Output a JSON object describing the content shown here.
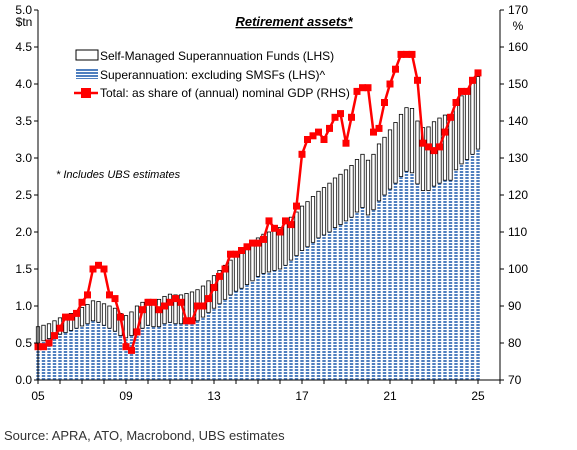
{
  "chart_data": {
    "type": "bar+line",
    "title": "Retirement assets*",
    "left_axis_unit": "$tn",
    "right_axis_unit": "%",
    "left_ylim": [
      0,
      5
    ],
    "left_ticks": [
      "0.0",
      "0.5",
      "1.0",
      "1.5",
      "2.0",
      "2.5",
      "3.0",
      "3.5",
      "4.0",
      "4.5",
      "5.0"
    ],
    "right_ylim": [
      70,
      170
    ],
    "right_ticks": [
      "70",
      "80",
      "90",
      "100",
      "110",
      "120",
      "130",
      "140",
      "150",
      "160",
      "170"
    ],
    "x_range": [
      2005,
      2026
    ],
    "x_ticks": [
      "05",
      "09",
      "13",
      "17",
      "21",
      "25"
    ],
    "note": "* Includes UBS estimates",
    "legend": {
      "smsf": "Self-Managed Superannuation Funds (LHS)",
      "super_ex": "Superannuation: excluding SMSFs (LHS)^",
      "total": "Total: as share of (annual) nominal GDP (RHS)"
    },
    "series": [
      {
        "name": "Superannuation: excluding SMSFs (LHS)^",
        "x": [
          2005.0,
          2005.25,
          2005.5,
          2005.75,
          2006.0,
          2006.25,
          2006.5,
          2006.75,
          2007.0,
          2007.25,
          2007.5,
          2007.75,
          2008.0,
          2008.25,
          2008.5,
          2008.75,
          2009.0,
          2009.25,
          2009.5,
          2009.75,
          2010.0,
          2010.25,
          2010.5,
          2010.75,
          2011.0,
          2011.25,
          2011.5,
          2011.75,
          2012.0,
          2012.25,
          2012.5,
          2012.75,
          2013.0,
          2013.25,
          2013.5,
          2013.75,
          2014.0,
          2014.25,
          2014.5,
          2014.75,
          2015.0,
          2015.25,
          2015.5,
          2015.75,
          2016.0,
          2016.25,
          2016.5,
          2016.75,
          2017.0,
          2017.25,
          2017.5,
          2017.75,
          2018.0,
          2018.25,
          2018.5,
          2018.75,
          2019.0,
          2019.25,
          2019.5,
          2019.75,
          2020.0,
          2020.25,
          2020.5,
          2020.75,
          2021.0,
          2021.25,
          2021.5,
          2021.75,
          2022.0,
          2022.25,
          2022.5,
          2022.75,
          2023.0,
          2023.25,
          2023.5,
          2023.75,
          2024.0,
          2024.25,
          2024.5,
          2024.75,
          2025.0
        ],
        "values": [
          0.5,
          0.53,
          0.56,
          0.59,
          0.62,
          0.64,
          0.67,
          0.7,
          0.73,
          0.76,
          0.8,
          0.78,
          0.74,
          0.7,
          0.66,
          0.6,
          0.57,
          0.6,
          0.66,
          0.7,
          0.74,
          0.72,
          0.72,
          0.76,
          0.78,
          0.76,
          0.76,
          0.77,
          0.78,
          0.8,
          0.85,
          0.91,
          0.97,
          1.03,
          1.09,
          1.15,
          1.2,
          1.24,
          1.29,
          1.34,
          1.4,
          1.44,
          1.46,
          1.48,
          1.5,
          1.55,
          1.62,
          1.68,
          1.75,
          1.8,
          1.86,
          1.92,
          1.96,
          2.0,
          2.06,
          2.1,
          2.15,
          2.2,
          2.27,
          2.33,
          2.23,
          2.3,
          2.42,
          2.5,
          2.58,
          2.66,
          2.75,
          2.82,
          2.8,
          2.65,
          2.56,
          2.56,
          2.62,
          2.66,
          2.7,
          2.7,
          2.84,
          2.92,
          2.98,
          3.05,
          3.12
        ]
      },
      {
        "name": "Self-Managed Superannuation Funds (LHS)",
        "x": [
          2005.0,
          2005.25,
          2005.5,
          2005.75,
          2006.0,
          2006.25,
          2006.5,
          2006.75,
          2007.0,
          2007.25,
          2007.5,
          2007.75,
          2008.0,
          2008.25,
          2008.5,
          2008.75,
          2009.0,
          2009.25,
          2009.5,
          2009.75,
          2010.0,
          2010.25,
          2010.5,
          2010.75,
          2011.0,
          2011.25,
          2011.5,
          2011.75,
          2012.0,
          2012.25,
          2012.5,
          2012.75,
          2013.0,
          2013.25,
          2013.5,
          2013.75,
          2014.0,
          2014.25,
          2014.5,
          2014.75,
          2015.0,
          2015.25,
          2015.5,
          2015.75,
          2016.0,
          2016.25,
          2016.5,
          2016.75,
          2017.0,
          2017.25,
          2017.5,
          2017.75,
          2018.0,
          2018.25,
          2018.5,
          2018.75,
          2019.0,
          2019.25,
          2019.5,
          2019.75,
          2020.0,
          2020.25,
          2020.5,
          2020.75,
          2021.0,
          2021.25,
          2021.5,
          2021.75,
          2022.0,
          2022.25,
          2022.5,
          2022.75,
          2023.0,
          2023.25,
          2023.5,
          2023.75,
          2024.0,
          2024.25,
          2024.5,
          2024.75,
          2025.0
        ],
        "values": [
          0.22,
          0.21,
          0.2,
          0.21,
          0.22,
          0.23,
          0.23,
          0.24,
          0.25,
          0.26,
          0.27,
          0.28,
          0.29,
          0.3,
          0.31,
          0.3,
          0.3,
          0.32,
          0.34,
          0.35,
          0.35,
          0.36,
          0.37,
          0.37,
          0.38,
          0.39,
          0.39,
          0.4,
          0.41,
          0.42,
          0.42,
          0.43,
          0.44,
          0.45,
          0.46,
          0.47,
          0.48,
          0.49,
          0.5,
          0.51,
          0.52,
          0.53,
          0.54,
          0.55,
          0.56,
          0.57,
          0.58,
          0.59,
          0.6,
          0.61,
          0.62,
          0.63,
          0.64,
          0.66,
          0.67,
          0.68,
          0.69,
          0.7,
          0.71,
          0.72,
          0.74,
          0.75,
          0.77,
          0.78,
          0.8,
          0.82,
          0.84,
          0.86,
          0.87,
          0.85,
          0.85,
          0.86,
          0.87,
          0.88,
          0.88,
          0.89,
          0.9,
          0.92,
          0.94,
          0.96,
          0.98
        ]
      },
      {
        "name": "Total: as share of (annual) nominal GDP (RHS)",
        "x": [
          2005.0,
          2005.25,
          2005.5,
          2005.75,
          2006.0,
          2006.25,
          2006.5,
          2006.75,
          2007.0,
          2007.25,
          2007.5,
          2007.75,
          2008.0,
          2008.25,
          2008.5,
          2008.75,
          2009.0,
          2009.25,
          2009.5,
          2009.75,
          2010.0,
          2010.25,
          2010.5,
          2010.75,
          2011.0,
          2011.25,
          2011.5,
          2011.75,
          2012.0,
          2012.25,
          2012.5,
          2012.75,
          2013.0,
          2013.25,
          2013.5,
          2013.75,
          2014.0,
          2014.25,
          2014.5,
          2014.75,
          2015.0,
          2015.25,
          2015.5,
          2015.75,
          2016.0,
          2016.25,
          2016.5,
          2016.75,
          2017.0,
          2017.25,
          2017.5,
          2017.75,
          2018.0,
          2018.25,
          2018.5,
          2018.75,
          2019.0,
          2019.25,
          2019.5,
          2019.75,
          2020.0,
          2020.25,
          2020.5,
          2020.75,
          2021.0,
          2021.25,
          2021.5,
          2021.75,
          2022.0,
          2022.25,
          2022.5,
          2022.75,
          2023.0,
          2023.25,
          2023.5,
          2023.75,
          2024.0,
          2024.25,
          2024.5,
          2024.75,
          2025.0
        ],
        "values": [
          79,
          79,
          80,
          82,
          84,
          87,
          87,
          88,
          91,
          93,
          100,
          101,
          100,
          93,
          92,
          87,
          79,
          78,
          83,
          89,
          91,
          91,
          89,
          90,
          91,
          92,
          91,
          86,
          86,
          90,
          90,
          92,
          95,
          98,
          100,
          104,
          104,
          105,
          106,
          107,
          107,
          108,
          113,
          111,
          110,
          113,
          112,
          117,
          131,
          135,
          136,
          137,
          135,
          138,
          141,
          142,
          134,
          141,
          148,
          149,
          149,
          137,
          138,
          145,
          150,
          154,
          158,
          158,
          158,
          151,
          134,
          133,
          132,
          133,
          137,
          141,
          145,
          148,
          148,
          151,
          153
        ]
      }
    ]
  },
  "colors": {
    "bar_fill": "#4f7fbf",
    "bar_stripe": "#ffffff",
    "smsf_fill": "#ffffff",
    "smsf_edge": "#000000",
    "line": "#ff0000",
    "marker": "#ff0000"
  },
  "source": "Source: APRA, ATO, Macrobond, UBS estimates"
}
